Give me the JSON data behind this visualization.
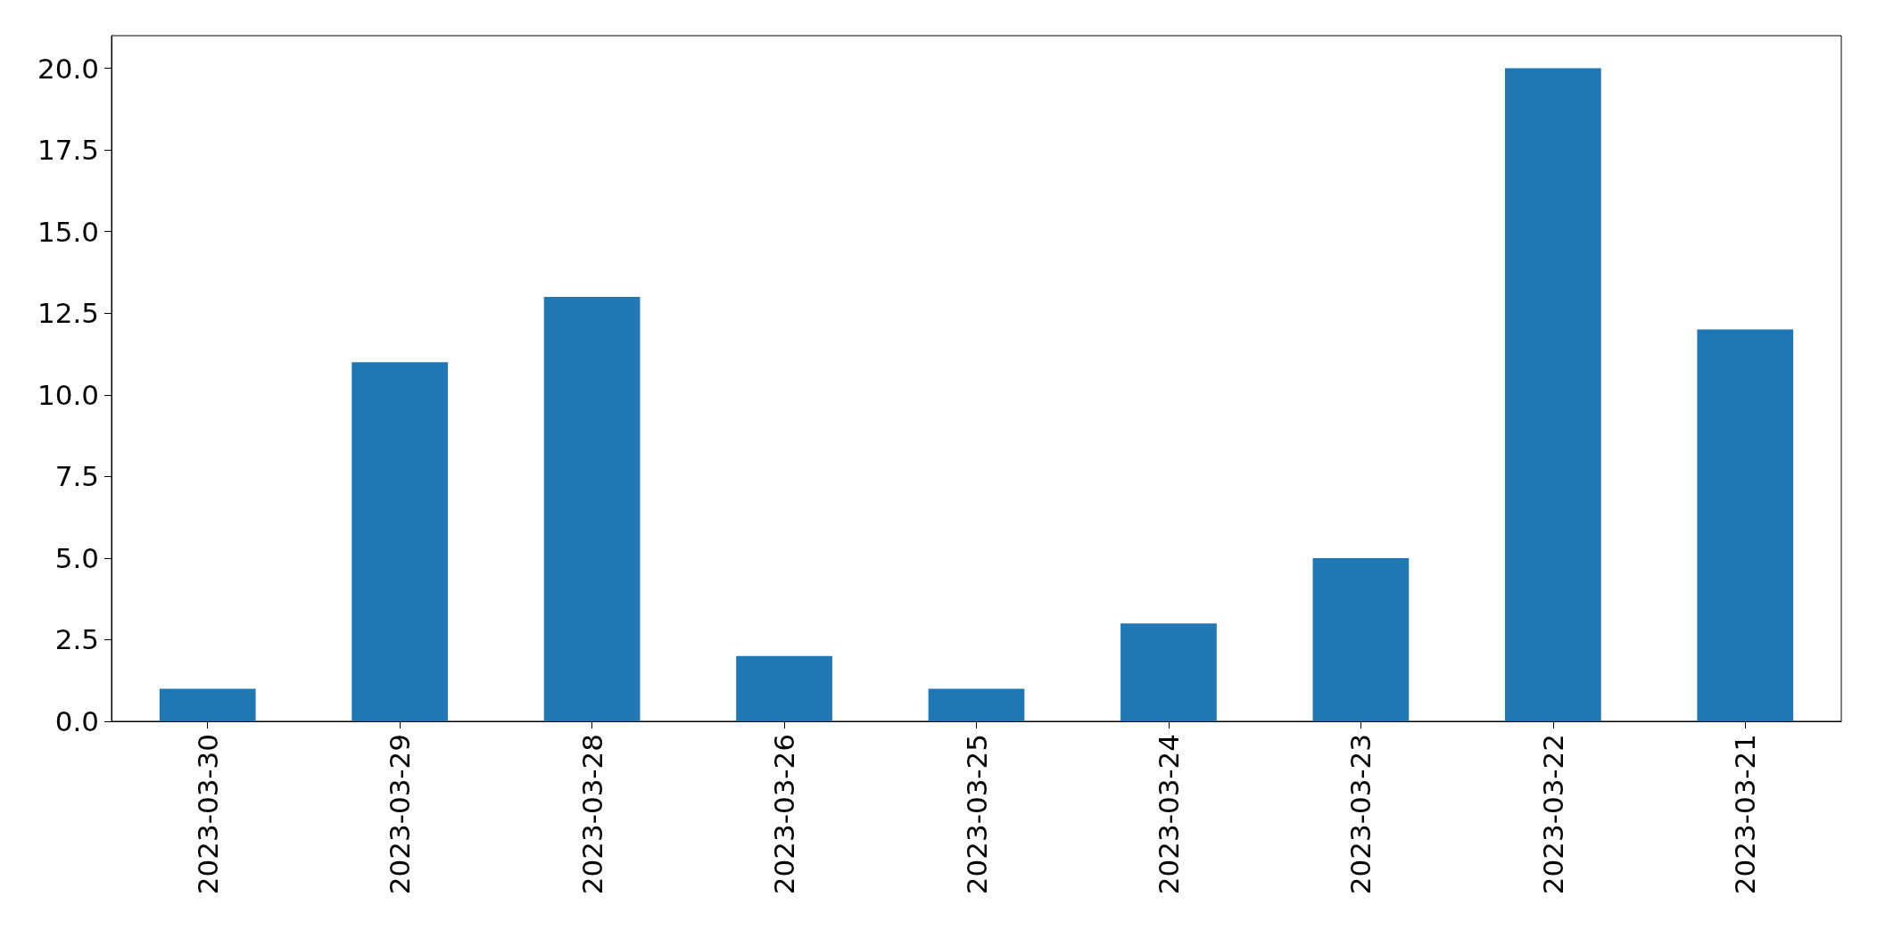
{
  "chart_data": {
    "type": "bar",
    "categories": [
      "2023-03-30",
      "2023-03-29",
      "2023-03-28",
      "2023-03-26",
      "2023-03-25",
      "2023-03-24",
      "2023-03-23",
      "2023-03-22",
      "2023-03-21"
    ],
    "values": [
      1,
      11,
      13,
      2,
      1,
      3,
      5,
      20,
      12
    ],
    "color": "#1f77b4",
    "ylim": [
      0,
      21
    ],
    "yticks": [
      {
        "value": 0,
        "label": "0.0"
      },
      {
        "value": 2.5,
        "label": "2.5"
      },
      {
        "value": 5,
        "label": "5.0"
      },
      {
        "value": 7.5,
        "label": "7.5"
      },
      {
        "value": 10,
        "label": "10.0"
      },
      {
        "value": 12.5,
        "label": "12.5"
      },
      {
        "value": 15,
        "label": "15.0"
      },
      {
        "value": 17.5,
        "label": "17.5"
      },
      {
        "value": 20,
        "label": "20.0"
      }
    ],
    "grid": false
  }
}
